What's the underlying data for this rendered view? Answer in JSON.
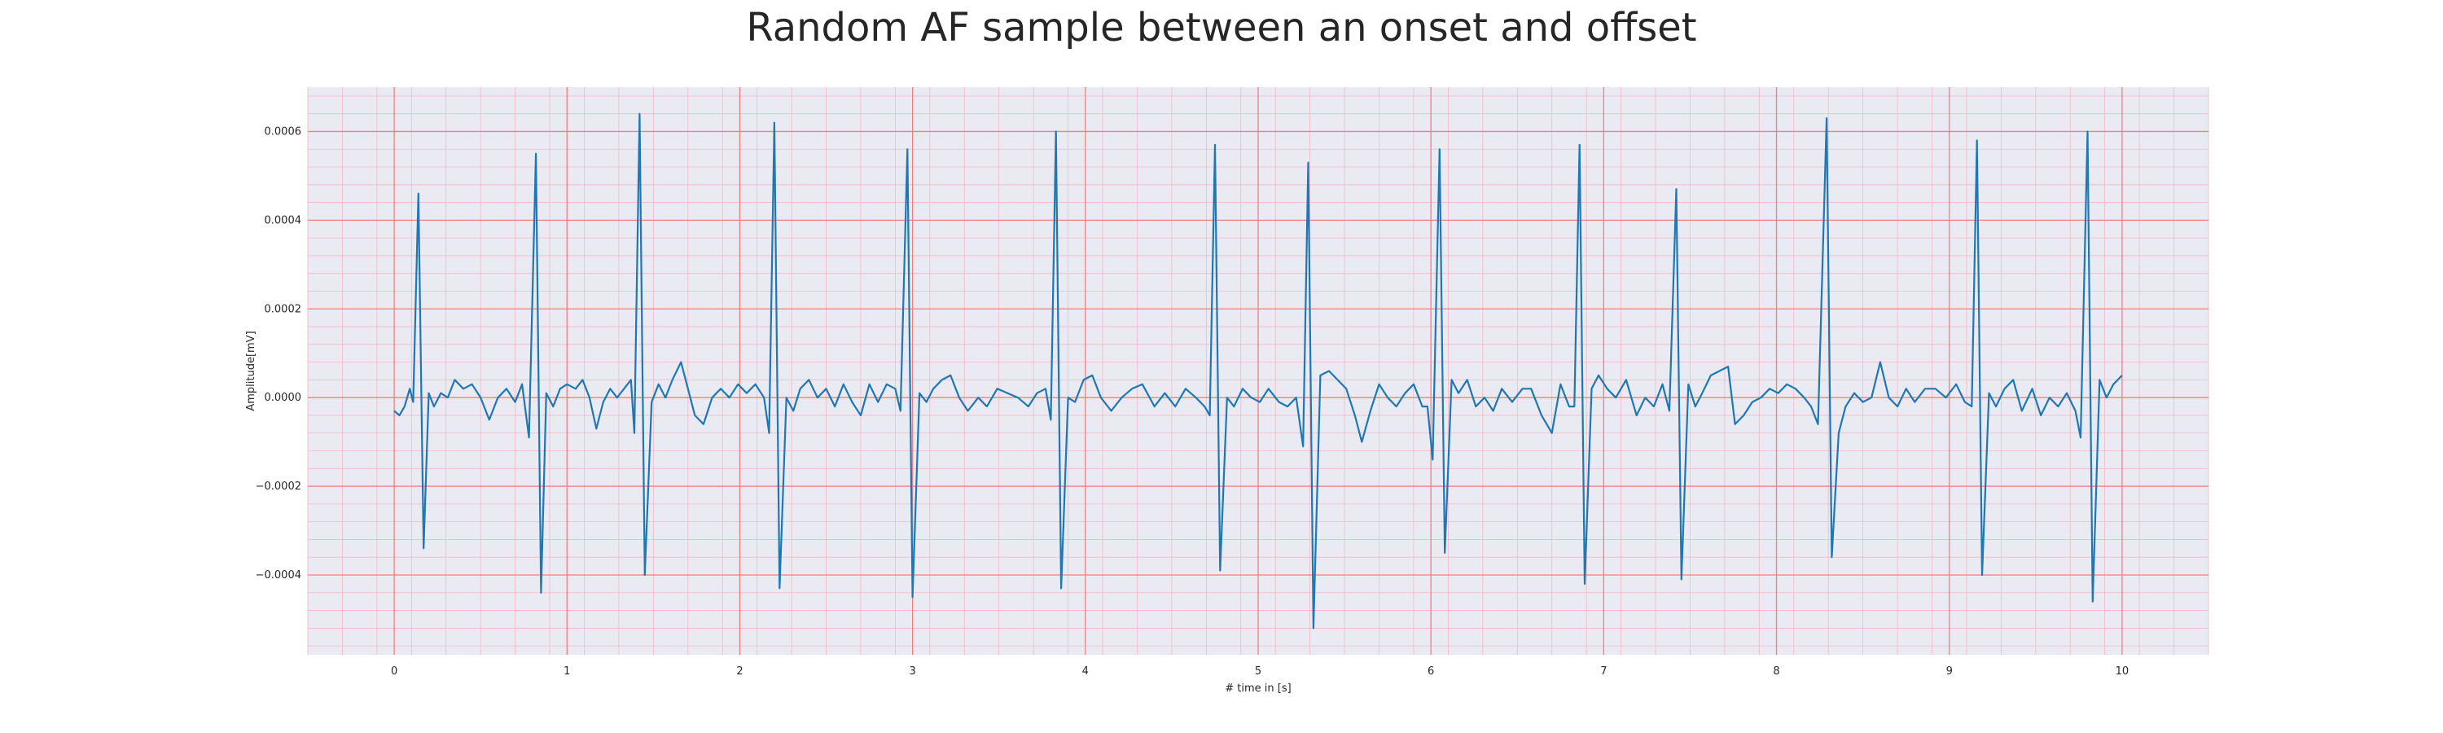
{
  "chart_data": {
    "type": "line",
    "title": "Random AF sample between an onset and offset",
    "xlabel": "# time in [s]",
    "ylabel": "Amplitude[mV]",
    "xlim": [
      -0.5,
      10.5
    ],
    "ylim": [
      -0.00058,
      0.0007
    ],
    "x_ticks": [
      0,
      1,
      2,
      3,
      4,
      5,
      6,
      7,
      8,
      9,
      10
    ],
    "x_tick_labels": [
      "0",
      "1",
      "2",
      "3",
      "4",
      "5",
      "6",
      "7",
      "8",
      "9",
      "10"
    ],
    "y_ticks": [
      -0.0004,
      -0.0002,
      0.0,
      0.0002,
      0.0004,
      0.0006
    ],
    "y_tick_labels": [
      "−0.0004",
      "−0.0002",
      "0.0000",
      "0.0002",
      "0.0004",
      "0.0006"
    ],
    "grid": true,
    "minor_grid": true,
    "colors": {
      "line": "#1f77b4",
      "plot_background": "#eaeaf2",
      "major_grid": "#f08080",
      "minor_grid": "#f4b8c4",
      "text": "#262626"
    },
    "series": [
      {
        "points": [
          [
            0.0,
            -3e-05
          ],
          [
            0.03,
            -4e-05
          ],
          [
            0.06,
            -2e-05
          ],
          [
            0.09,
            2e-05
          ],
          [
            0.11,
            -1e-05
          ],
          [
            0.14,
            0.00046
          ],
          [
            0.17,
            -0.00034
          ],
          [
            0.2,
            1e-05
          ],
          [
            0.23,
            -2e-05
          ],
          [
            0.27,
            1e-05
          ],
          [
            0.31,
            0.0
          ],
          [
            0.35,
            4e-05
          ],
          [
            0.4,
            2e-05
          ],
          [
            0.45,
            3e-05
          ],
          [
            0.5,
            0.0
          ],
          [
            0.55,
            -5e-05
          ],
          [
            0.6,
            0.0
          ],
          [
            0.65,
            2e-05
          ],
          [
            0.7,
            -1e-05
          ],
          [
            0.74,
            3e-05
          ],
          [
            0.78,
            -9e-05
          ],
          [
            0.82,
            0.00055
          ],
          [
            0.85,
            -0.00044
          ],
          [
            0.88,
            1e-05
          ],
          [
            0.92,
            -2e-05
          ],
          [
            0.96,
            2e-05
          ],
          [
            1.0,
            3e-05
          ],
          [
            1.05,
            2e-05
          ],
          [
            1.09,
            4e-05
          ],
          [
            1.13,
            0.0
          ],
          [
            1.17,
            -7e-05
          ],
          [
            1.21,
            -1e-05
          ],
          [
            1.25,
            2e-05
          ],
          [
            1.29,
            0.0
          ],
          [
            1.33,
            2e-05
          ],
          [
            1.37,
            4e-05
          ],
          [
            1.39,
            -8e-05
          ],
          [
            1.42,
            0.00064
          ],
          [
            1.45,
            -0.0004
          ],
          [
            1.49,
            -1e-05
          ],
          [
            1.53,
            3e-05
          ],
          [
            1.57,
            0.0
          ],
          [
            1.61,
            4e-05
          ],
          [
            1.66,
            8e-05
          ],
          [
            1.7,
            2e-05
          ],
          [
            1.74,
            -4e-05
          ],
          [
            1.79,
            -6e-05
          ],
          [
            1.84,
            0.0
          ],
          [
            1.89,
            2e-05
          ],
          [
            1.94,
            0.0
          ],
          [
            1.99,
            3e-05
          ],
          [
            2.04,
            1e-05
          ],
          [
            2.09,
            3e-05
          ],
          [
            2.14,
            0.0
          ],
          [
            2.17,
            -8e-05
          ],
          [
            2.2,
            0.00062
          ],
          [
            2.23,
            -0.00043
          ],
          [
            2.27,
            0.0
          ],
          [
            2.31,
            -3e-05
          ],
          [
            2.35,
            2e-05
          ],
          [
            2.4,
            4e-05
          ],
          [
            2.45,
            0.0
          ],
          [
            2.5,
            2e-05
          ],
          [
            2.55,
            -2e-05
          ],
          [
            2.6,
            3e-05
          ],
          [
            2.65,
            -1e-05
          ],
          [
            2.7,
            -4e-05
          ],
          [
            2.75,
            3e-05
          ],
          [
            2.8,
            -1e-05
          ],
          [
            2.85,
            3e-05
          ],
          [
            2.9,
            2e-05
          ],
          [
            2.93,
            -3e-05
          ],
          [
            2.97,
            0.00056
          ],
          [
            3.0,
            -0.00045
          ],
          [
            3.04,
            1e-05
          ],
          [
            3.08,
            -1e-05
          ],
          [
            3.12,
            2e-05
          ],
          [
            3.17,
            4e-05
          ],
          [
            3.22,
            5e-05
          ],
          [
            3.27,
            0.0
          ],
          [
            3.32,
            -3e-05
          ],
          [
            3.38,
            0.0
          ],
          [
            3.43,
            -2e-05
          ],
          [
            3.49,
            2e-05
          ],
          [
            3.55,
            1e-05
          ],
          [
            3.61,
            0.0
          ],
          [
            3.67,
            -2e-05
          ],
          [
            3.72,
            1e-05
          ],
          [
            3.77,
            2e-05
          ],
          [
            3.8,
            -5e-05
          ],
          [
            3.83,
            0.0006
          ],
          [
            3.86,
            -0.00043
          ],
          [
            3.9,
            0.0
          ],
          [
            3.94,
            -1e-05
          ],
          [
            3.99,
            4e-05
          ],
          [
            4.04,
            5e-05
          ],
          [
            4.09,
            0.0
          ],
          [
            4.15,
            -3e-05
          ],
          [
            4.21,
            0.0
          ],
          [
            4.27,
            2e-05
          ],
          [
            4.33,
            3e-05
          ],
          [
            4.4,
            -2e-05
          ],
          [
            4.46,
            1e-05
          ],
          [
            4.52,
            -2e-05
          ],
          [
            4.58,
            2e-05
          ],
          [
            4.64,
            0.0
          ],
          [
            4.69,
            -2e-05
          ],
          [
            4.72,
            -4e-05
          ],
          [
            4.75,
            0.00057
          ],
          [
            4.78,
            -0.00039
          ],
          [
            4.82,
            0.0
          ],
          [
            4.86,
            -2e-05
          ],
          [
            4.91,
            2e-05
          ],
          [
            4.96,
            0.0
          ],
          [
            5.01,
            -1e-05
          ],
          [
            5.06,
            2e-05
          ],
          [
            5.12,
            -1e-05
          ],
          [
            5.17,
            -2e-05
          ],
          [
            5.22,
            0.0
          ],
          [
            5.26,
            -0.00011
          ],
          [
            5.29,
            0.00053
          ],
          [
            5.32,
            -0.00052
          ],
          [
            5.36,
            5e-05
          ],
          [
            5.41,
            6e-05
          ],
          [
            5.46,
            4e-05
          ],
          [
            5.51,
            2e-05
          ],
          [
            5.56,
            -4e-05
          ],
          [
            5.6,
            -0.0001
          ],
          [
            5.65,
            -3e-05
          ],
          [
            5.7,
            3e-05
          ],
          [
            5.75,
            0.0
          ],
          [
            5.8,
            -2e-05
          ],
          [
            5.85,
            1e-05
          ],
          [
            5.9,
            3e-05
          ],
          [
            5.95,
            -2e-05
          ],
          [
            5.98,
            -2e-05
          ],
          [
            6.01,
            -0.00014
          ],
          [
            6.05,
            0.00056
          ],
          [
            6.08,
            -0.00035
          ],
          [
            6.12,
            4e-05
          ],
          [
            6.16,
            1e-05
          ],
          [
            6.21,
            4e-05
          ],
          [
            6.26,
            -2e-05
          ],
          [
            6.31,
            0.0
          ],
          [
            6.36,
            -3e-05
          ],
          [
            6.41,
            2e-05
          ],
          [
            6.47,
            -1e-05
          ],
          [
            6.53,
            2e-05
          ],
          [
            6.58,
            2e-05
          ],
          [
            6.64,
            -4e-05
          ],
          [
            6.7,
            -8e-05
          ],
          [
            6.75,
            3e-05
          ],
          [
            6.8,
            -2e-05
          ],
          [
            6.83,
            -2e-05
          ],
          [
            6.86,
            0.00057
          ],
          [
            6.89,
            -0.00042
          ],
          [
            6.93,
            2e-05
          ],
          [
            6.97,
            5e-05
          ],
          [
            7.02,
            2e-05
          ],
          [
            7.07,
            0.0
          ],
          [
            7.13,
            4e-05
          ],
          [
            7.19,
            -4e-05
          ],
          [
            7.24,
            0.0
          ],
          [
            7.29,
            -2e-05
          ],
          [
            7.34,
            3e-05
          ],
          [
            7.38,
            -3e-05
          ],
          [
            7.42,
            0.00047
          ],
          [
            7.45,
            -0.00041
          ],
          [
            7.49,
            3e-05
          ],
          [
            7.53,
            -2e-05
          ],
          [
            7.57,
            1e-05
          ],
          [
            7.62,
            5e-05
          ],
          [
            7.67,
            6e-05
          ],
          [
            7.72,
            7e-05
          ],
          [
            7.76,
            -6e-05
          ],
          [
            7.81,
            -4e-05
          ],
          [
            7.86,
            -1e-05
          ],
          [
            7.91,
            0.0
          ],
          [
            7.96,
            2e-05
          ],
          [
            8.01,
            1e-05
          ],
          [
            8.06,
            3e-05
          ],
          [
            8.11,
            2e-05
          ],
          [
            8.16,
            0.0
          ],
          [
            8.2,
            -2e-05
          ],
          [
            8.24,
            -6e-05
          ],
          [
            8.29,
            0.00063
          ],
          [
            8.32,
            -0.00036
          ],
          [
            8.36,
            -8e-05
          ],
          [
            8.4,
            -2e-05
          ],
          [
            8.45,
            1e-05
          ],
          [
            8.5,
            -1e-05
          ],
          [
            8.55,
            0.0
          ],
          [
            8.6,
            8e-05
          ],
          [
            8.65,
            0.0
          ],
          [
            8.7,
            -2e-05
          ],
          [
            8.75,
            2e-05
          ],
          [
            8.8,
            -1e-05
          ],
          [
            8.86,
            2e-05
          ],
          [
            8.92,
            2e-05
          ],
          [
            8.98,
            0.0
          ],
          [
            9.04,
            3e-05
          ],
          [
            9.09,
            -1e-05
          ],
          [
            9.13,
            -2e-05
          ],
          [
            9.16,
            0.00058
          ],
          [
            9.19,
            -0.0004
          ],
          [
            9.23,
            1e-05
          ],
          [
            9.27,
            -2e-05
          ],
          [
            9.32,
            2e-05
          ],
          [
            9.37,
            4e-05
          ],
          [
            9.42,
            -3e-05
          ],
          [
            9.48,
            2e-05
          ],
          [
            9.53,
            -4e-05
          ],
          [
            9.58,
            0.0
          ],
          [
            9.63,
            -2e-05
          ],
          [
            9.68,
            1e-05
          ],
          [
            9.73,
            -3e-05
          ],
          [
            9.76,
            -9e-05
          ],
          [
            9.8,
            0.0006
          ],
          [
            9.83,
            -0.00046
          ],
          [
            9.87,
            4e-05
          ],
          [
            9.91,
            0.0
          ],
          [
            9.95,
            3e-05
          ],
          [
            10.0,
            5e-05
          ]
        ]
      }
    ]
  }
}
